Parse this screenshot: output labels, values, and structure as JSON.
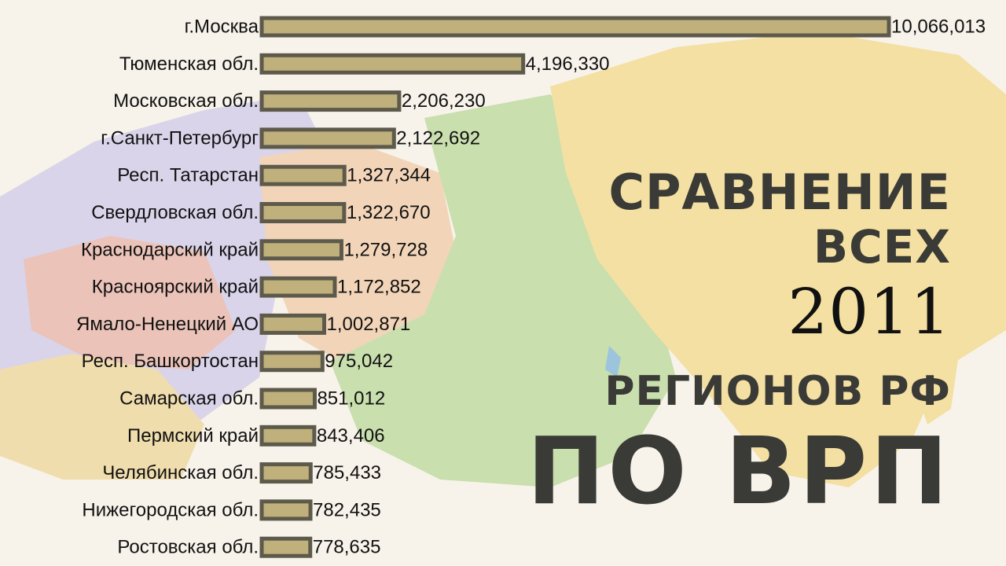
{
  "chart_data": {
    "type": "bar",
    "orientation": "horizontal",
    "categories": [
      "г.Москва",
      "Тюменская обл.",
      "Московская обл.",
      "г.Санкт-Петербург",
      "Респ. Татарстан",
      "Свердловская обл.",
      "Краснодарский край",
      "Красноярский край",
      "Ямало-Ненецкий АО",
      "Респ. Башкортостан",
      "Самарская обл.",
      "Пермский край",
      "Челябинская обл.",
      "Нижегородская обл.",
      "Ростовская обл."
    ],
    "values": [
      10066013,
      4196330,
      2206230,
      2122692,
      1327344,
      1322670,
      1279728,
      1172852,
      1002871,
      975042,
      851012,
      843406,
      785433,
      782435,
      778635
    ],
    "value_labels": [
      "10,066,013",
      "4,196,330",
      "2,206,230",
      "2,122,692",
      "1,327,344",
      "1,322,670",
      "1,279,728",
      "1,172,852",
      "1,002,871",
      "975,042",
      "851,012",
      "843,406",
      "785,433",
      "782,435",
      "778,635"
    ],
    "colors": {
      "bar_fill": "#bfb07c",
      "bar_stroke": "#5d5a4c"
    }
  },
  "overlay_title": {
    "line1": "СРАВНЕНИЕ",
    "line2": "ВСЕХ",
    "year": "2011",
    "line3": "РЕГИОНОВ РФ",
    "line4": "ПО ВРП"
  }
}
